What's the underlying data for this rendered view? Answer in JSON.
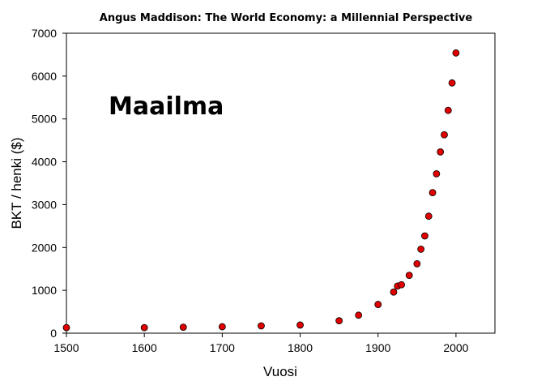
{
  "chart_data": {
    "type": "scatter",
    "title": "Angus Maddison: The World Economy: a Millennial Perspective",
    "annotation": "Maailma",
    "xlabel": "Vuosi",
    "ylabel": "BKT / henki ($)",
    "xlim": [
      1500,
      2050
    ],
    "ylim": [
      0,
      7000
    ],
    "xticks": [
      1500,
      1600,
      1700,
      1800,
      1900,
      2000
    ],
    "yticks": [
      0,
      1000,
      2000,
      3000,
      4000,
      5000,
      6000,
      7000
    ],
    "grid": false,
    "marker_color": "#e00000",
    "marker_edge": "#000000",
    "points": [
      {
        "x": 1500,
        "y": 130
      },
      {
        "x": 1600,
        "y": 130
      },
      {
        "x": 1650,
        "y": 140
      },
      {
        "x": 1700,
        "y": 150
      },
      {
        "x": 1750,
        "y": 170
      },
      {
        "x": 1800,
        "y": 190
      },
      {
        "x": 1850,
        "y": 290
      },
      {
        "x": 1875,
        "y": 420
      },
      {
        "x": 1900,
        "y": 670
      },
      {
        "x": 1920,
        "y": 960
      },
      {
        "x": 1925,
        "y": 1100
      },
      {
        "x": 1930,
        "y": 1130
      },
      {
        "x": 1940,
        "y": 1350
      },
      {
        "x": 1950,
        "y": 1620
      },
      {
        "x": 1955,
        "y": 1960
      },
      {
        "x": 1960,
        "y": 2270
      },
      {
        "x": 1965,
        "y": 2730
      },
      {
        "x": 1970,
        "y": 3280
      },
      {
        "x": 1975,
        "y": 3720
      },
      {
        "x": 1980,
        "y": 4230
      },
      {
        "x": 1985,
        "y": 4630
      },
      {
        "x": 1990,
        "y": 5200
      },
      {
        "x": 1995,
        "y": 5840
      },
      {
        "x": 2000,
        "y": 6540
      }
    ]
  }
}
